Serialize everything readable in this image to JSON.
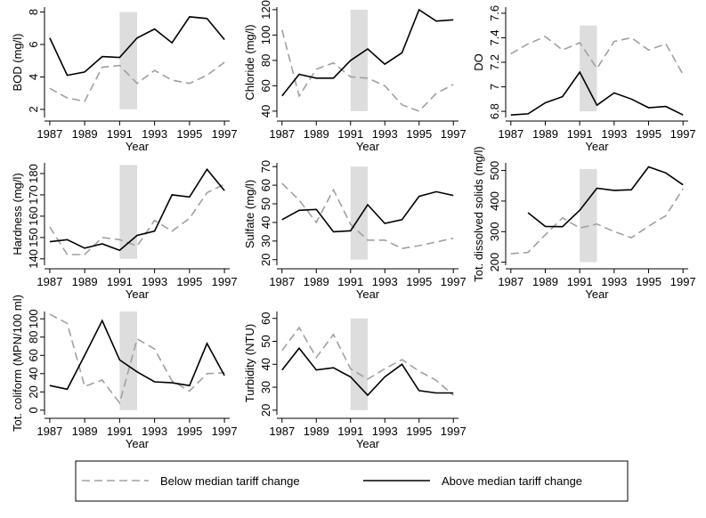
{
  "chart_data": [
    {
      "type": "line",
      "ylabel": "BOD (mg/l)",
      "xlabel": "Year",
      "x": [
        1987,
        1988,
        1989,
        1990,
        1991,
        1992,
        1993,
        1994,
        1995,
        1996,
        1997
      ],
      "xlim": [
        1986.7,
        1997.3
      ],
      "xticks": [
        1987,
        1989,
        1991,
        1993,
        1995,
        1997
      ],
      "ylim": [
        1.5,
        8.3
      ],
      "yticks": [
        2,
        4,
        6,
        8
      ],
      "shade": {
        "x": [
          1991,
          1992
        ],
        "y": [
          2,
          8
        ],
        "color": "#dddddd"
      },
      "series": [
        {
          "name": "Below median tariff change",
          "color": "#a0a0a0",
          "dashed": true,
          "values": [
            3.3,
            2.7,
            2.5,
            4.6,
            4.7,
            3.6,
            4.4,
            3.8,
            3.6,
            4.1,
            4.9
          ]
        },
        {
          "name": "Above median tariff change",
          "color": "#000000",
          "dashed": false,
          "values": [
            6.4,
            4.1,
            4.3,
            5.25,
            5.2,
            6.4,
            6.95,
            6.1,
            7.7,
            7.6,
            6.3
          ]
        }
      ]
    },
    {
      "type": "line",
      "ylabel": "Chloride (mg/l)",
      "xlabel": "Year",
      "x": [
        1987,
        1988,
        1989,
        1990,
        1991,
        1992,
        1993,
        1994,
        1995,
        1996,
        1997
      ],
      "xlim": [
        1986.7,
        1997.3
      ],
      "xticks": [
        1987,
        1989,
        1991,
        1993,
        1995,
        1997
      ],
      "ylim": [
        35,
        122
      ],
      "yticks": [
        40,
        60,
        80,
        100,
        120
      ],
      "shade": {
        "x": [
          1991,
          1992
        ],
        "y": [
          40,
          120
        ],
        "color": "#dddddd"
      },
      "series": [
        {
          "name": "Below median tariff change",
          "color": "#a0a0a0",
          "dashed": true,
          "values": [
            104,
            52,
            73,
            78,
            67,
            66,
            60,
            45,
            40,
            54,
            61
          ]
        },
        {
          "name": "Above median tariff change",
          "color": "#000000",
          "dashed": false,
          "values": [
            52,
            69,
            66,
            66,
            80,
            89,
            77,
            86,
            120,
            111,
            112
          ]
        }
      ]
    },
    {
      "type": "line",
      "ylabel": "DO",
      "xlabel": "Year",
      "x": [
        1987,
        1988,
        1989,
        1990,
        1991,
        1992,
        1993,
        1994,
        1995,
        1996,
        1997
      ],
      "xlim": [
        1986.7,
        1997.3
      ],
      "xticks": [
        1987,
        1989,
        1991,
        1993,
        1995,
        1997
      ],
      "ylim": [
        6.75,
        7.65
      ],
      "yticks": [
        6.8,
        7,
        7.2,
        7.4,
        7.6
      ],
      "shade": {
        "x": [
          1991,
          1992
        ],
        "y": [
          6.8,
          7.5
        ],
        "color": "#dddddd"
      },
      "series": [
        {
          "name": "Below median tariff change",
          "color": "#a0a0a0",
          "dashed": true,
          "values": [
            7.27,
            7.35,
            7.41,
            7.3,
            7.36,
            7.15,
            7.37,
            7.4,
            7.3,
            7.35,
            7.1
          ]
        },
        {
          "name": "Above median tariff change",
          "color": "#000000",
          "dashed": false,
          "values": [
            6.77,
            6.78,
            6.87,
            6.92,
            7.12,
            6.85,
            6.95,
            6.9,
            6.83,
            6.84,
            6.77
          ]
        }
      ]
    },
    {
      "type": "line",
      "ylabel": "Hardness (mg/l)",
      "xlabel": "Year",
      "x": [
        1987,
        1988,
        1989,
        1990,
        1991,
        1992,
        1993,
        1994,
        1995,
        1996,
        1997
      ],
      "xlim": [
        1986.7,
        1997.3
      ],
      "xticks": [
        1987,
        1989,
        1991,
        1993,
        1995,
        1997
      ],
      "ylim": [
        137,
        185
      ],
      "yticks": [
        140,
        150,
        160,
        170,
        180
      ],
      "shade": {
        "x": [
          1991,
          1992
        ],
        "y": [
          140,
          184
        ],
        "color": "#dddddd"
      },
      "series": [
        {
          "name": "Below median tariff change",
          "color": "#a0a0a0",
          "dashed": true,
          "values": [
            155,
            142,
            142,
            150,
            149,
            146,
            158,
            153,
            159,
            171,
            175
          ]
        },
        {
          "name": "Above median tariff change",
          "color": "#000000",
          "dashed": false,
          "values": [
            148,
            149,
            145,
            147,
            144,
            151,
            153,
            170,
            169,
            182,
            172
          ]
        }
      ]
    },
    {
      "type": "line",
      "ylabel": "Sulfate (mg/l)",
      "xlabel": "Year",
      "x": [
        1987,
        1988,
        1989,
        1990,
        1991,
        1992,
        1993,
        1994,
        1995,
        1996,
        1997
      ],
      "xlim": [
        1986.7,
        1997.3
      ],
      "xticks": [
        1987,
        1989,
        1991,
        1993,
        1995,
        1997
      ],
      "ylim": [
        17,
        72
      ],
      "yticks": [
        20,
        30,
        40,
        50,
        60,
        70
      ],
      "shade": {
        "x": [
          1991,
          1992
        ],
        "y": [
          20,
          70
        ],
        "color": "#dddddd"
      },
      "series": [
        {
          "name": "Below median tariff change",
          "color": "#a0a0a0",
          "dashed": true,
          "values": [
            61,
            52,
            40,
            57.5,
            39,
            30.5,
            30.5,
            26,
            27.5,
            29.5,
            31.5
          ]
        },
        {
          "name": "Above median tariff change",
          "color": "#000000",
          "dashed": false,
          "values": [
            41.5,
            46.5,
            47,
            35,
            35.5,
            49.5,
            39.5,
            41.5,
            54,
            56.5,
            54.5
          ]
        }
      ]
    },
    {
      "type": "line",
      "ylabel": "Tot. dissolved solids (mg/l)",
      "xlabel": "Year",
      "x": [
        1987,
        1988,
        1989,
        1990,
        1991,
        1992,
        1993,
        1994,
        1995,
        1996,
        1997
      ],
      "xlim": [
        1986.7,
        1997.3
      ],
      "xticks": [
        1987,
        1989,
        1991,
        1993,
        1995,
        1997
      ],
      "ylim": [
        190,
        525
      ],
      "yticks": [
        200,
        300,
        400,
        500
      ],
      "shade": {
        "x": [
          1991,
          1992
        ],
        "y": [
          200,
          505
        ],
        "color": "#dddddd"
      },
      "series": [
        {
          "name": "Below median tariff change",
          "color": "#a0a0a0",
          "dashed": true,
          "values": [
            228,
            232,
            290,
            345,
            312,
            325,
            300,
            280,
            318,
            352,
            440
          ]
        },
        {
          "name": "Above median tariff change",
          "color": "#000000",
          "dashed": false,
          "values": [
            null,
            362,
            317,
            316,
            370,
            442,
            435,
            437,
            512,
            492,
            453
          ]
        }
      ]
    },
    {
      "type": "line",
      "ylabel": "Tot. coliform (MPN/100 ml)",
      "xlabel": "Year",
      "x": [
        1987,
        1988,
        1989,
        1990,
        1991,
        1992,
        1993,
        1994,
        1995,
        1996,
        1997
      ],
      "xlim": [
        1986.7,
        1997.3
      ],
      "xticks": [
        1987,
        1989,
        1991,
        1993,
        1995,
        1997
      ],
      "ylim": [
        -5,
        108
      ],
      "yticks": [
        0,
        20,
        40,
        60,
        80,
        100
      ],
      "shade": {
        "x": [
          1991,
          1992
        ],
        "y": [
          0,
          108
        ],
        "color": "#dddddd"
      },
      "series": [
        {
          "name": "Below median tariff change",
          "color": "#a0a0a0",
          "dashed": true,
          "values": [
            105,
            95,
            26,
            33,
            8,
            78,
            67,
            32,
            21,
            40,
            41
          ]
        },
        {
          "name": "Above median tariff change",
          "color": "#000000",
          "dashed": false,
          "values": [
            27,
            23,
            60,
            98,
            55,
            42,
            31,
            30,
            27,
            73,
            38
          ]
        }
      ]
    },
    {
      "type": "line",
      "ylabel": "Turbidity (NTU)",
      "xlabel": "Year",
      "x": [
        1987,
        1988,
        1989,
        1990,
        1991,
        1992,
        1993,
        1994,
        1995,
        1996,
        1997
      ],
      "xlim": [
        1986.7,
        1997.3
      ],
      "xticks": [
        1987,
        1989,
        1991,
        1993,
        1995,
        1997
      ],
      "ylim": [
        18,
        63
      ],
      "yticks": [
        20,
        30,
        40,
        50,
        60
      ],
      "shade": {
        "x": [
          1991,
          1992
        ],
        "y": [
          20,
          60
        ],
        "color": "#dddddd"
      },
      "series": [
        {
          "name": "Below median tariff change",
          "color": "#a0a0a0",
          "dashed": true,
          "values": [
            46,
            56,
            43,
            53,
            38,
            33.5,
            38,
            42,
            37,
            33,
            26.5
          ]
        },
        {
          "name": "Above median tariff change",
          "color": "#000000",
          "dashed": false,
          "values": [
            37.5,
            47,
            37.5,
            38.5,
            34.5,
            26.5,
            34.5,
            40,
            28.5,
            27.5,
            27.5
          ]
        }
      ]
    }
  ]
}
